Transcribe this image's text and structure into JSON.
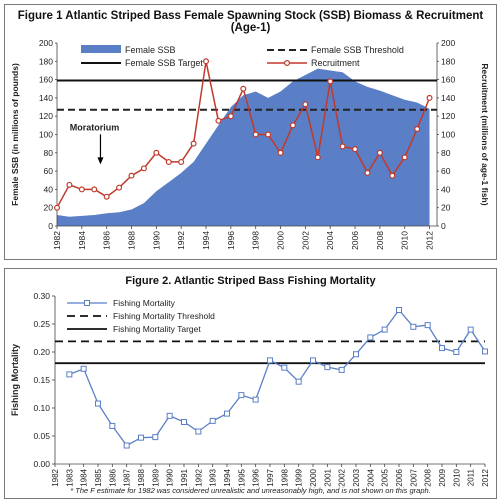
{
  "chart_data": [
    {
      "type": "area",
      "title": "Figure 1 Atlantic Striped Bass Female Spawning Stock (SSB) Biomass & Recruitment (Age-1)",
      "ylabel": "Female SSB (in millions of pounds)",
      "ylabel_right": "Recruitment (millions of age-1 fish)",
      "ylim": [
        0,
        200
      ],
      "ylim_right": [
        0,
        200
      ],
      "yticks": [
        "0",
        "20",
        "40",
        "60",
        "80",
        "100",
        "120",
        "140",
        "160",
        "180",
        "200"
      ],
      "xticks": [
        "1982",
        "1984",
        "1986",
        "1988",
        "1990",
        "1992",
        "1994",
        "1996",
        "1998",
        "2000",
        "2002",
        "2004",
        "2006",
        "2008",
        "2010",
        "2012"
      ],
      "x": [
        1982,
        1983,
        1984,
        1985,
        1986,
        1987,
        1988,
        1989,
        1990,
        1991,
        1992,
        1993,
        1994,
        1995,
        1996,
        1997,
        1998,
        1999,
        2000,
        2001,
        2002,
        2003,
        2004,
        2005,
        2006,
        2007,
        2008,
        2009,
        2010,
        2011,
        2012
      ],
      "series": [
        {
          "name": "Female SSB",
          "type": "area",
          "color": "#5b7fc7",
          "values": [
            12,
            10,
            11,
            12,
            14,
            15,
            18,
            25,
            38,
            48,
            58,
            70,
            90,
            110,
            130,
            143,
            147,
            140,
            147,
            158,
            165,
            172,
            170,
            168,
            158,
            152,
            148,
            143,
            138,
            135,
            128
          ]
        },
        {
          "name": "Recruitment",
          "type": "line",
          "color": "#c0392b",
          "values": [
            20,
            45,
            40,
            40,
            32,
            42,
            55,
            63,
            80,
            70,
            70,
            90,
            180,
            115,
            120,
            150,
            100,
            100,
            80,
            110,
            133,
            75,
            158,
            87,
            84,
            58,
            80,
            55,
            75,
            106,
            140
          ]
        },
        {
          "name": "Female SSB Threshold",
          "type": "hline",
          "value": 127
        },
        {
          "name": "Female SSB Target",
          "type": "hline",
          "value": 159
        }
      ],
      "annotation": {
        "text": "Moratorium",
        "x": 1985.5,
        "y": 98
      },
      "legend": "top"
    },
    {
      "type": "line",
      "title": "Figure 2. Atlantic Striped Bass Fishing Mortality",
      "ylabel": "Fishing Mortality",
      "ylim": [
        0,
        0.3
      ],
      "yticks": [
        "0.00",
        "0.05",
        "0.10",
        "0.15",
        "0.20",
        "0.25",
        "0.30"
      ],
      "xticks": [
        "1982",
        "1983",
        "1984",
        "1985",
        "1986",
        "1987",
        "1988",
        "1989",
        "1990",
        "1991",
        "1992",
        "1993",
        "1994",
        "1995",
        "1996",
        "1997",
        "1998",
        "1999",
        "2000",
        "2001",
        "2002",
        "2003",
        "2004",
        "2005",
        "2006",
        "2007",
        "2008",
        "2009",
        "2010",
        "2011",
        "2012"
      ],
      "x": [
        1983,
        1984,
        1985,
        1986,
        1987,
        1988,
        1989,
        1990,
        1991,
        1992,
        1993,
        1994,
        1995,
        1996,
        1997,
        1998,
        1999,
        2000,
        2001,
        2002,
        2003,
        2004,
        2005,
        2006,
        2007,
        2008,
        2009,
        2010,
        2011,
        2012
      ],
      "series": [
        {
          "name": "Fishing Mortality",
          "type": "line",
          "color": "#5b7fc7",
          "values": [
            0.16,
            0.17,
            0.108,
            0.068,
            0.033,
            0.047,
            0.048,
            0.086,
            0.075,
            0.058,
            0.077,
            0.09,
            0.123,
            0.115,
            0.185,
            0.172,
            0.147,
            0.185,
            0.173,
            0.168,
            0.196,
            0.226,
            0.24,
            0.275,
            0.245,
            0.248,
            0.207,
            0.2,
            0.24,
            0.201
          ]
        },
        {
          "name": "Fishing Mortality Threshold",
          "type": "hline",
          "value": 0.219
        },
        {
          "name": "Fishing Mortality Target",
          "type": "hline",
          "value": 0.18
        }
      ],
      "legend": "top-left",
      "footnote": "* The F estimate for 1982 was considered unrealistic and unreasonably high, and is not shown on this graph."
    }
  ]
}
